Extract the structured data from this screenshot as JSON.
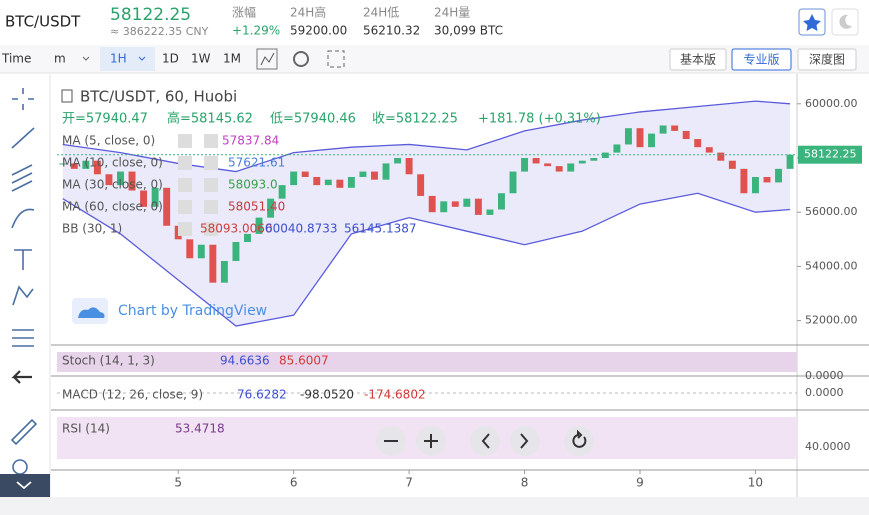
{
  "header": {
    "symbol": "BTC/USDT",
    "price": 58122.25,
    "cny": "≈ 386222.35 CNY",
    "stats": [
      {
        "label": "涨幅",
        "value": "+1.29%"
      },
      {
        "label": "24H高",
        "value": "59200.00"
      },
      {
        "label": "24H低",
        "value": "56210.32"
      },
      {
        "label": "24H量",
        "value": "30,099 BTC"
      }
    ]
  },
  "toolbar": {
    "time": "Time",
    "unit": "m",
    "interval": "1H",
    "periods": [
      "1D",
      "1W",
      "1M"
    ],
    "views": [
      "基本版",
      "专业版",
      "深度图"
    ]
  },
  "legend": {
    "ohlc": [
      "开=57940.47",
      "高=58145.62",
      "低=57940.46",
      "收=58122.25",
      "+181.78 (+0.31%)"
    ],
    "studies": [
      {
        "name": "MA (5, close, 0)",
        "values": [
          "57837.84"
        ]
      },
      {
        "name": "MA (10, close, 0)",
        "values": [
          "57621.61"
        ]
      },
      {
        "name": "MA (30, close, 0)",
        "values": [
          "58093.0"
        ]
      },
      {
        "name": "MA (60, close, 0)",
        "values": [
          "58051.40"
        ]
      },
      {
        "name": "BB (30, 1)",
        "values": [
          "58093.0060",
          "60040.8733",
          "56145.1387"
        ]
      }
    ],
    "watermark": "Chart by TradingView"
  },
  "panels": [
    {
      "name": "Stoch (14, 1, 3)",
      "values": [
        "94.6636",
        "85.6007"
      ],
      "axis": "0.0000"
    },
    {
      "name": "MACD (12, 26, close, 9)",
      "values": [
        "76.6282",
        "-98.0520",
        "-174.6802"
      ],
      "axis": "0.0000"
    },
    {
      "name": "RSI (14)",
      "values": [
        "53.4718"
      ],
      "axis": "40.0000"
    }
  ],
  "chart_data": {
    "type": "candlestick",
    "title": "BTC/USDT, 60, Huobi",
    "values": [
      57800,
      57600,
      57900,
      57400,
      57000,
      57500,
      56800,
      56200,
      56900,
      55500,
      55000,
      54300,
      54800,
      53400,
      54200,
      54900,
      55200,
      55800,
      56500,
      57000,
      57500,
      57300,
      57000,
      57200,
      56900,
      57300,
      57500,
      57200,
      57800,
      58000,
      57400,
      56600,
      56000,
      56400,
      56200,
      56500,
      55900,
      56100,
      56700,
      57500,
      58000,
      57800,
      57700,
      57500,
      57800,
      57900,
      58000,
      58200,
      58500,
      59100,
      58400,
      58900,
      59200,
      59000,
      58700,
      58400,
      58200,
      57900,
      57600,
      56700,
      57300,
      57100,
      57600,
      58122.25
    ],
    "up_color": "#3bb37d",
    "down_color": "#e0524f",
    "bb_x": [
      0,
      5,
      10,
      15,
      20,
      25,
      30,
      35,
      40,
      45,
      50,
      55,
      60,
      63
    ],
    "bb_upper": [
      58500,
      58200,
      57800,
      57500,
      58200,
      58400,
      58500,
      58300,
      59000,
      59400,
      59700,
      59900,
      60100,
      60000
    ],
    "bb_lower": [
      56500,
      55200,
      53500,
      51800,
      52200,
      55200,
      55800,
      55300,
      54800,
      55300,
      56300,
      56700,
      56000,
      56100
    ],
    "bb_color": "#5b5bdc",
    "xlim": [
      -0.5,
      63.6
    ],
    "ylim": [
      51100,
      61100
    ],
    "xticks": [
      {
        "value": 10,
        "label": "5"
      },
      {
        "value": 20,
        "label": "6"
      },
      {
        "value": 30,
        "label": "7"
      },
      {
        "value": 40,
        "label": "8"
      },
      {
        "value": 50,
        "label": "9"
      },
      {
        "value": 60,
        "label": "10"
      }
    ],
    "yticks": [
      {
        "value": 52000,
        "label": "52000.00"
      },
      {
        "value": 54000,
        "label": "54000.00"
      },
      {
        "value": 56000,
        "label": "56000.00"
      },
      {
        "value": 58000,
        "label": "58000.00"
      },
      {
        "value": 60000,
        "label": "60000.00"
      }
    ]
  }
}
